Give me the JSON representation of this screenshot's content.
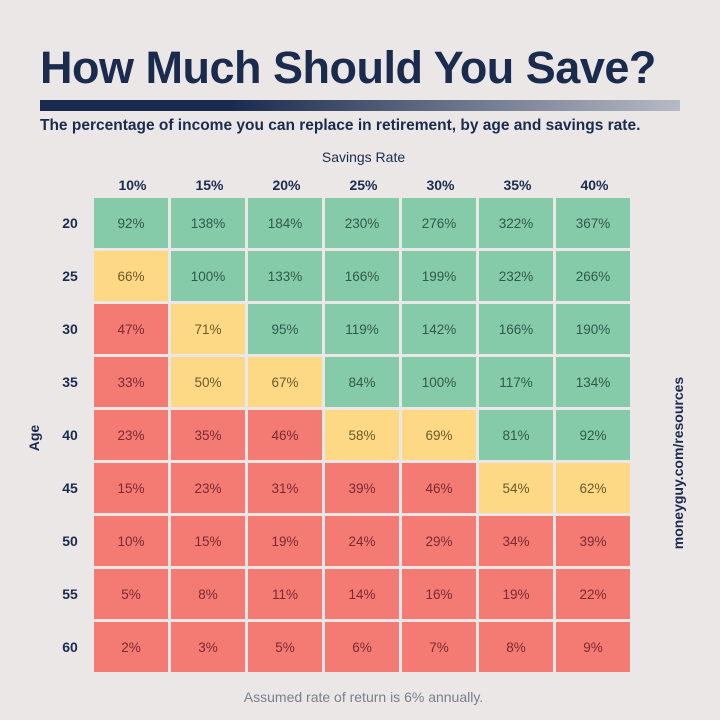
{
  "title": "How Much Should You Save?",
  "subtitle": "The percentage of income you can replace in retirement, by age and savings rate.",
  "side_text": "moneyguy.com/resources",
  "footer": "Assumed rate of return is 6% annually.",
  "colors": {
    "title": "#1b2b4e",
    "green": "#86cba9",
    "yellow": "#fdd985",
    "red": "#f47a74"
  },
  "chart_data": {
    "type": "heatmap",
    "xlabel": "Savings Rate",
    "ylabel": "Age",
    "columns": [
      "10%",
      "15%",
      "20%",
      "25%",
      "30%",
      "35%",
      "40%"
    ],
    "rows": [
      "20",
      "25",
      "30",
      "35",
      "40",
      "45",
      "50",
      "55",
      "60"
    ],
    "values": [
      [
        92,
        138,
        184,
        230,
        276,
        322,
        367
      ],
      [
        66,
        100,
        133,
        166,
        199,
        232,
        266
      ],
      [
        47,
        71,
        95,
        119,
        142,
        166,
        190
      ],
      [
        33,
        50,
        67,
        84,
        100,
        117,
        134
      ],
      [
        23,
        35,
        46,
        58,
        69,
        81,
        92
      ],
      [
        15,
        23,
        31,
        39,
        46,
        54,
        62
      ],
      [
        10,
        15,
        19,
        24,
        29,
        34,
        39
      ],
      [
        5,
        8,
        11,
        14,
        16,
        19,
        22
      ],
      [
        2,
        3,
        5,
        6,
        7,
        8,
        9
      ]
    ],
    "unit": "%"
  }
}
